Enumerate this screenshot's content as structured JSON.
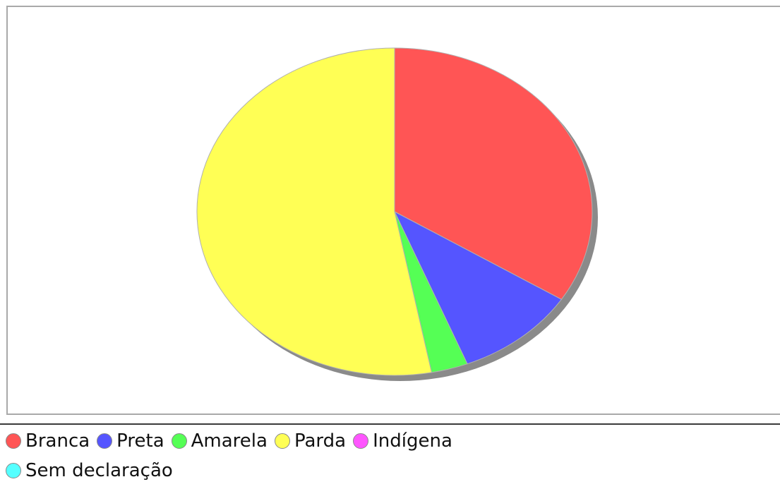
{
  "chart_data": {
    "type": "pie",
    "title": "",
    "series": [
      {
        "name": "Branca",
        "value": 34.0,
        "color": "#ff5555"
      },
      {
        "name": "Preta",
        "value": 10.0,
        "color": "#5555ff"
      },
      {
        "name": "Amarela",
        "value": 3.0,
        "color": "#55ff55"
      },
      {
        "name": "Parda",
        "value": 53.0,
        "color": "#ffff55"
      },
      {
        "name": "Indígena",
        "value": 0,
        "color": "#ff55ff"
      },
      {
        "name": "Sem declaração",
        "value": 0,
        "color": "#55ffff"
      }
    ],
    "legend_position": "bottom",
    "start_angle": "12 o'clock",
    "direction": "clockwise",
    "shadow": true
  }
}
